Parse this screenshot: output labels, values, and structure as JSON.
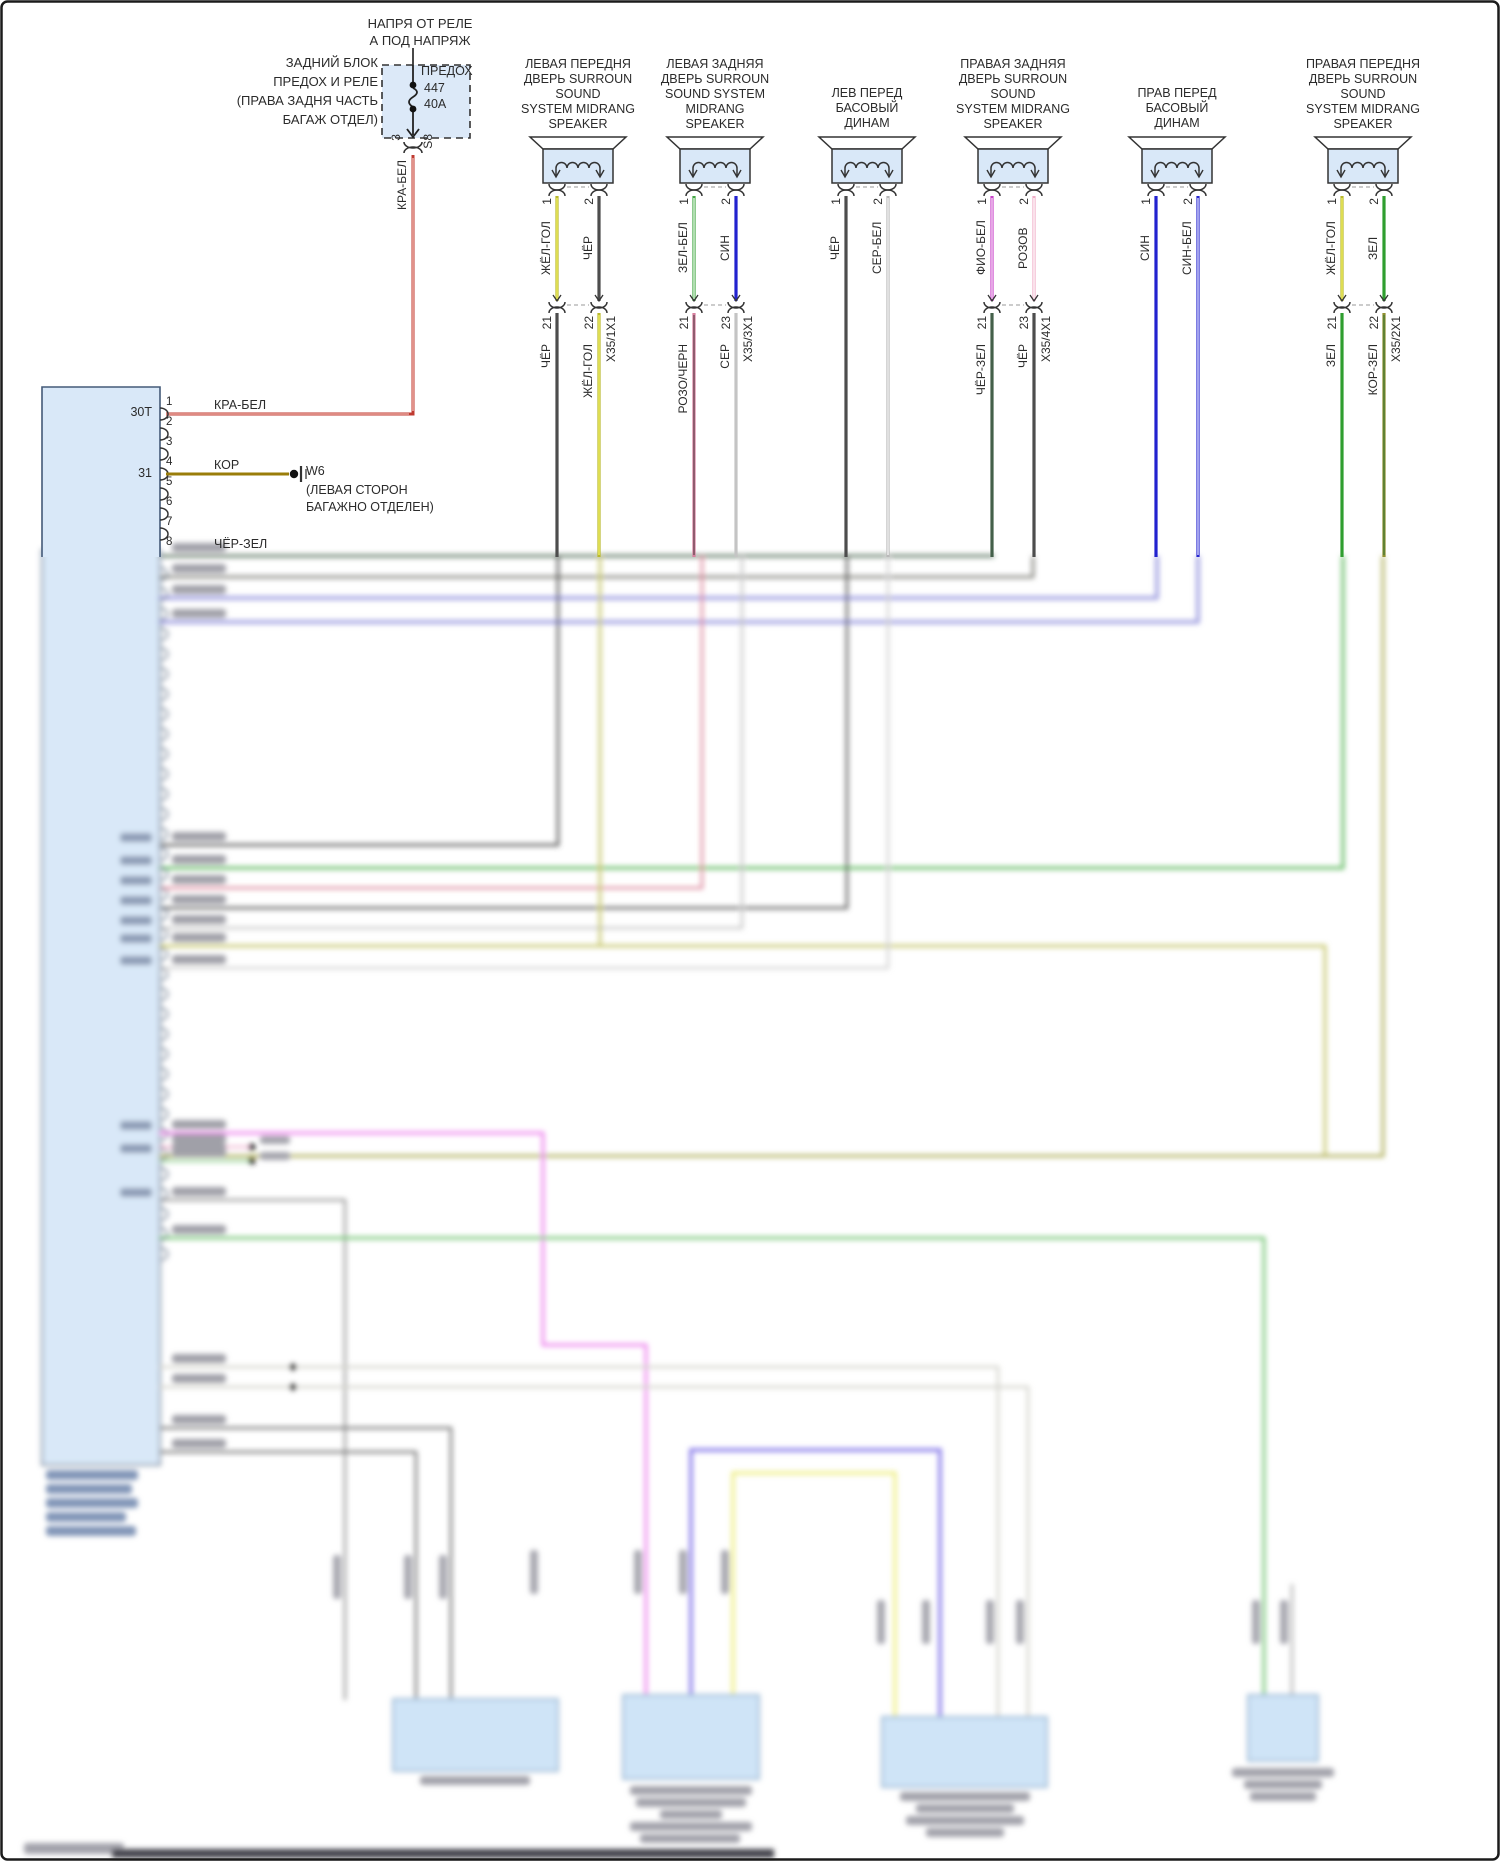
{
  "page": {
    "background": "#ffffff",
    "border_color": "#1b1b1b"
  },
  "fuse_area": {
    "feed_line1": "НАПРЯ ОТ РЕЛЕ",
    "feed_line2": "А ПОД НАПРЯЖ",
    "block_name": "ЗАДНИЙ БЛОК\nПРЕДОХ И РЕЛЕ\n(ПРАВА ЗАДНЯ ЧАСТЬ\nБАГАЖ ОТДЕЛ)",
    "fuse_label": "ПРЕДОХ",
    "fuse_number": "447",
    "fuse_rating": "40А",
    "pin_out": "3",
    "connector": "S8",
    "wire_down": "КРА-БЕЛ"
  },
  "module": {
    "pins": [
      "1",
      "2",
      "3",
      "4",
      "5",
      "6",
      "7",
      "8"
    ],
    "pin1_bus": "30Т",
    "pin4_bus": "31",
    "pin1_wire": "КРА-БЕЛ",
    "pin4_wire": "КОР",
    "pin8_wire": "ЧЁР-ЗЕЛ",
    "ground_id": "W6",
    "ground_note": "(ЛЕВАЯ СТОРОН\nБАГАЖНО ОТДЕЛЕН)"
  },
  "speakers": [
    {
      "title": "ЛЕВАЯ ПЕРЕДНЯ\nДВЕРЬ SURROUN\nSOUND\nSYSTEM MIDRANG\nSPEAKER",
      "pin1": "1",
      "pin2": "2",
      "wire1": "ЖЁЛ-ГОЛ",
      "wire2": "ЧЁР",
      "conn_pin1": "21",
      "conn_pin2": "22",
      "conn_name": "X35/1X1",
      "wire1_below": "ЧЁР",
      "wire2_below": "ЖЁЛ-ГОЛ"
    },
    {
      "title": "ЛЕВАЯ ЗАДНЯЯ\nДВЕРЬ SURROUN\nSOUND SYSTEM\nMIDRANG\nSPEAKER",
      "pin1": "1",
      "pin2": "2",
      "wire1": "ЗЕЛ-БЕЛ",
      "wire2": "СИН",
      "conn_pin1": "21",
      "conn_pin2": "23",
      "conn_name": "X35/3X1",
      "wire1_below": "РОЗО/ЧЕРН",
      "wire2_below": "СЕР"
    },
    {
      "title": "ЛЕВ ПЕРЕД\nБАСОВЫЙ\nДИНАМ",
      "pin1": "1",
      "pin2": "2",
      "wire1": "ЧЁР",
      "wire2": "СЕР-БЕЛ"
    },
    {
      "title": "ПРАВАЯ ЗАДНЯЯ\nДВЕРЬ SURROUN\nSOUND\nSYSTEM MIDRANG\nSPEAKER",
      "pin1": "1",
      "pin2": "2",
      "wire1": "ФИО-БЕЛ",
      "wire2": "РОЗОВ",
      "conn_pin1": "21",
      "conn_pin2": "23",
      "conn_name": "X35/4X1",
      "wire1_below": "ЧЁР-ЗЕЛ",
      "wire2_below": "ЧЁР"
    },
    {
      "title": "ПРАВ ПЕРЕД\nБАСОВЫЙ\nДИНАМ",
      "pin1": "1",
      "pin2": "2",
      "wire1": "СИН",
      "wire2": "СИН-БЕЛ"
    },
    {
      "title": "ПРАВАЯ ПЕРЕДНЯ\nДВЕРЬ SURROUN\nSOUND\nSYSTEM MIDRANG\nSPEAKER",
      "pin1": "1",
      "pin2": "2",
      "wire1": "ЖЁЛ-ГОЛ",
      "wire2": "ЗЕЛ",
      "conn_pin1": "21",
      "conn_pin2": "22",
      "conn_name": "X35/2X1",
      "wire1_below": "ЗЕЛ",
      "wire2_below": "КОР-ЗЕЛ"
    }
  ],
  "wire_colors": {
    "КРА-БЕЛ": {
      "outer": "#bf3a30",
      "core": "#ffd9d4"
    },
    "КОР": {
      "outer": "#9a7d0a",
      "core": null
    },
    "ЧЁР-ЗЕЛ": {
      "outer": "#44604a",
      "core": null
    },
    "ЖЁЛ-ГОЛ": {
      "outer": "#b9b92e",
      "core": "#f2f066"
    },
    "ЧЁР": {
      "outer": "#4d4d4d",
      "core": null
    },
    "ЗЕЛ-БЕЛ": {
      "outer": "#43a543",
      "core": "#eafdea"
    },
    "СИН": {
      "outer": "#2222cf",
      "core": null
    },
    "СЕР-БЕЛ": {
      "outer": "#b9b9b9",
      "core": "#f6f6f6"
    },
    "ФИО-БЕЛ": {
      "outer": "#ca42ca",
      "core": "#f6def6"
    },
    "РОЗОВ": {
      "outer": "#efadc7",
      "core": "#ffffff"
    },
    "СИН-БЕЛ": {
      "outer": "#2626cf",
      "core": "#e4e4ff"
    },
    "ЗЕЛ": {
      "outer": "#2f9e2f",
      "core": null
    },
    "КОР-ЗЕЛ": {
      "outer": "#90902f",
      "core": "#477a35"
    },
    "РОЗО/ЧЕРН": {
      "outer": "#d87f9f",
      "core": "#6a4a55"
    },
    "СЕР": {
      "outer": "#c4c4c4",
      "core": null
    }
  }
}
